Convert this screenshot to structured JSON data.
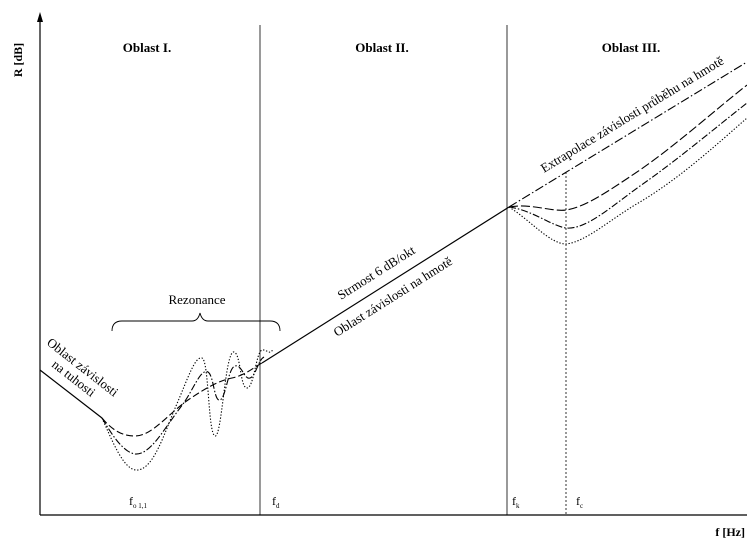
{
  "axes": {
    "y_label": "R [dB]",
    "x_label": "f [Hz]"
  },
  "regions": {
    "r1": "Oblast I.",
    "r2": "Oblast II.",
    "r3": "Oblast III."
  },
  "annotations": {
    "resonance": "Rezonance",
    "stiffness_line1": "Oblast závislosti",
    "stiffness_line2": "na tuhosti",
    "slope": "Strmost 6 dB/okt",
    "mass_dependence": "Oblast závislosti na hmotě",
    "extrapolation": "Extrapolace závislosti průběhu na hmotě"
  },
  "frequencies": {
    "f0_main": "f",
    "f0_sub": "o 1,1",
    "fd_main": "f",
    "fd_sub": "d",
    "fk_main": "f",
    "fk_sub": "k",
    "fc_main": "f",
    "fc_sub": "c"
  }
}
